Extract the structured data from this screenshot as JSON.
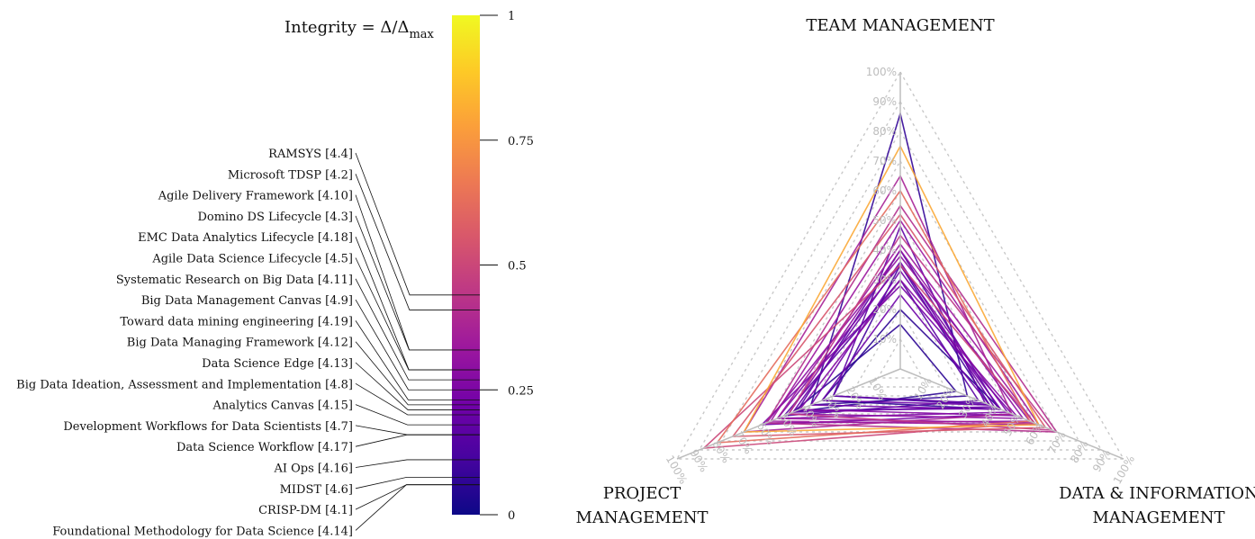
{
  "colorbar": {
    "title_main": "Integrity = Δ/Δ",
    "title_sub": "max",
    "ticks": [
      {
        "value": 0,
        "label": "0"
      },
      {
        "value": 0.25,
        "label": "0.25"
      },
      {
        "value": 0.5,
        "label": "0.5"
      },
      {
        "value": 0.75,
        "label": "0.75"
      },
      {
        "value": 1,
        "label": "1"
      }
    ],
    "colormap": "plasma",
    "colormap_stops": [
      "#0d0887",
      "#46039f",
      "#7201a8",
      "#9c179e",
      "#bd3786",
      "#d8576b",
      "#ed7953",
      "#fb9f3a",
      "#fdca26",
      "#f0f921"
    ]
  },
  "chart_data": {
    "type": "radar",
    "axes": [
      "TEAM MANAGEMENT",
      "DATA & INFORMATION MANAGEMENT",
      "PROJECT MANAGEMENT"
    ],
    "axis_labels": [
      {
        "line1": "TEAM MANAGEMENT",
        "line2": ""
      },
      {
        "line1": "DATA & INFORMATION",
        "line2": "MANAGEMENT"
      },
      {
        "line1": "PROJECT",
        "line2": "MANAGEMENT"
      }
    ],
    "percent_ticks": [
      "10%",
      "20%",
      "30%",
      "40%",
      "50%",
      "60%",
      "70%",
      "80%",
      "90%",
      "100%"
    ],
    "range": [
      0,
      100
    ],
    "grid": true,
    "color_scale": "integrity",
    "series": [
      {
        "name": "RAMSYS [4.4]",
        "integrity": 0.44,
        "values": [
          45,
          68,
          50
        ]
      },
      {
        "name": "Microsoft TDSP [4.2]",
        "integrity": 0.41,
        "values": [
          55,
          70,
          60
        ]
      },
      {
        "name": "Agile Delivery Framework [4.10]",
        "integrity": 0.33,
        "values": [
          42,
          60,
          55
        ]
      },
      {
        "name": "Domino DS Lifecycle [4.3]",
        "integrity": 0.33,
        "values": [
          50,
          62,
          58
        ]
      },
      {
        "name": "EMC Data Analytics Lifecycle [4.18]",
        "integrity": 0.29,
        "values": [
          40,
          55,
          50
        ]
      },
      {
        "name": "Agile Data Science Lifecycle [4.5]",
        "integrity": 0.29,
        "values": [
          38,
          58,
          60
        ]
      },
      {
        "name": "Systematic Research on Big Data [4.11]",
        "integrity": 0.27,
        "values": [
          30,
          52,
          45
        ]
      },
      {
        "name": "Big Data Management Canvas [4.9]",
        "integrity": 0.25,
        "values": [
          35,
          48,
          55
        ]
      },
      {
        "name": "Toward data mining engineering [4.19]",
        "integrity": 0.23,
        "values": [
          28,
          50,
          62
        ]
      },
      {
        "name": "Big Data Managing Framework [4.12]",
        "integrity": 0.22,
        "values": [
          33,
          45,
          40
        ]
      },
      {
        "name": "Data Science Edge [4.13]",
        "integrity": 0.21,
        "values": [
          25,
          40,
          35
        ]
      },
      {
        "name": "Big Data Ideation, Assessment and Implementation [4.8]",
        "integrity": 0.2,
        "values": [
          36,
          42,
          48
        ]
      },
      {
        "name": "Analytics Canvas [4.15]",
        "integrity": 0.18,
        "values": [
          48,
          38,
          30
        ]
      },
      {
        "name": "Development Workflows for Data Scientists [4.7]",
        "integrity": 0.16,
        "values": [
          30,
          35,
          52
        ]
      },
      {
        "name": "Data Science Workflow [4.17]",
        "integrity": 0.16,
        "values": [
          40,
          44,
          46
        ]
      },
      {
        "name": "AI Ops [4.16]",
        "integrity": 0.11,
        "values": [
          35,
          40,
          30
        ]
      },
      {
        "name": "MIDST [4.6]",
        "integrity": 0.075,
        "values": [
          86,
          30,
          40
        ]
      },
      {
        "name": "CRISP-DM [4.1]",
        "integrity": 0.06,
        "values": [
          15,
          25,
          48
        ]
      },
      {
        "name": "Foundational Methodology for Data Science [4.14]",
        "integrity": 0.06,
        "values": [
          20,
          45,
          35
        ]
      },
      {
        "name": "",
        "integrity": 0.8,
        "values": [
          75,
          62,
          70
        ]
      },
      {
        "name": "",
        "integrity": 0.62,
        "values": [
          60,
          58,
          82
        ]
      },
      {
        "name": "",
        "integrity": 0.55,
        "values": [
          52,
          65,
          75
        ]
      },
      {
        "name": "",
        "integrity": 0.5,
        "values": [
          35,
          60,
          88
        ]
      },
      {
        "name": "",
        "integrity": 0.37,
        "values": [
          65,
          50,
          70
        ]
      }
    ]
  }
}
